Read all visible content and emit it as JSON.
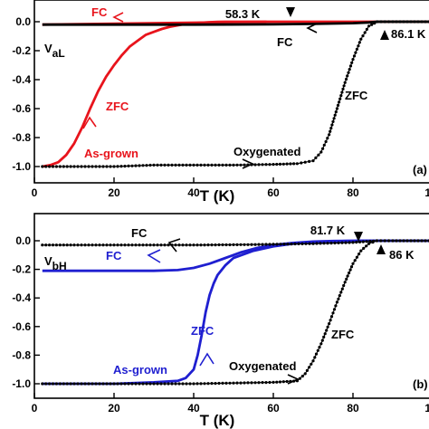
{
  "chart_data": [
    {
      "panel": "(a)",
      "type": "line",
      "xlabel": "T (K)",
      "ylabel": "",
      "xlim": [
        0,
        100
      ],
      "ylim": [
        -1.1,
        0.1
      ],
      "xticks": [
        "0",
        "20",
        "40",
        "60",
        "80",
        "1"
      ],
      "yticks": [
        "0.0",
        "-0.2",
        "-0.4",
        "-0.6",
        "-0.8",
        "-1.0"
      ],
      "grid": false,
      "series": [
        {
          "name": "As-grown",
          "color": "#e8141c",
          "style": "solid",
          "x": [
            2,
            4,
            6,
            8,
            10,
            12,
            14,
            16,
            18,
            20,
            22,
            24,
            26,
            28,
            30,
            32,
            34,
            36,
            38,
            40,
            42,
            44,
            46,
            48,
            50,
            52,
            54,
            56,
            58.3,
            60,
            70,
            80,
            90,
            100
          ],
          "y": [
            -1.0,
            -0.99,
            -0.97,
            -0.92,
            -0.84,
            -0.73,
            -0.6,
            -0.48,
            -0.38,
            -0.3,
            -0.23,
            -0.17,
            -0.13,
            -0.09,
            -0.07,
            -0.05,
            -0.035,
            -0.025,
            -0.015,
            -0.01,
            -0.006,
            -0.003,
            -0.001,
            0,
            0,
            0,
            0,
            0,
            0,
            0,
            0,
            0,
            0,
            0
          ]
        },
        {
          "name": "FC",
          "color": "#e8141c",
          "style": "solid",
          "x": [
            2,
            58.3
          ],
          "y": [
            -0.02,
            0.0
          ]
        },
        {
          "name": "Oxygenated",
          "color": "#000000",
          "style": "dotted",
          "x": [
            2,
            10,
            20,
            30,
            40,
            50,
            60,
            66,
            70,
            72,
            74,
            76,
            78,
            80,
            82,
            84,
            86.1,
            88,
            90,
            100
          ],
          "y": [
            -1.0,
            -1.0,
            -1.0,
            -0.99,
            -0.99,
            -0.99,
            -0.985,
            -0.98,
            -0.96,
            -0.9,
            -0.78,
            -0.6,
            -0.42,
            -0.26,
            -0.12,
            -0.03,
            0.0,
            0.0,
            0.0,
            0.0
          ]
        },
        {
          "name": "FC",
          "color": "#000000",
          "style": "solid",
          "x": [
            2,
            20,
            40,
            60,
            70,
            80,
            84,
            86.1,
            100
          ],
          "y": [
            -0.02,
            -0.02,
            -0.02,
            -0.018,
            -0.015,
            -0.01,
            -0.005,
            0.0,
            0.0
          ]
        }
      ],
      "annotations": [
        {
          "text": "FC",
          "color": "#e8141c"
        },
        {
          "text": "58.3 K",
          "color": "#000000"
        },
        {
          "text": "86.1 K",
          "color": "#000000"
        },
        {
          "text": "FC",
          "color": "#000000"
        },
        {
          "text": "ZFC",
          "color": "#e8141c"
        },
        {
          "text": "ZFC",
          "color": "#000000"
        },
        {
          "text": "As-grown",
          "color": "#e8141c"
        },
        {
          "text": "Oxygenated",
          "color": "#000000"
        },
        {
          "text": "(a)",
          "color": "#000000"
        }
      ],
      "label_main": "V",
      "label_sub": "aL"
    },
    {
      "panel": "(b)",
      "type": "line",
      "xlabel": "T (K)",
      "ylabel": "",
      "xlim": [
        0,
        100
      ],
      "ylim": [
        -1.1,
        0.1
      ],
      "xticks": [
        "0",
        "20",
        "40",
        "60",
        "80",
        "1"
      ],
      "yticks": [
        "0.0",
        "-0.2",
        "-0.4",
        "-0.6",
        "-0.8",
        "-1.0"
      ],
      "grid": false,
      "series": [
        {
          "name": "As-grown",
          "color": "#1f1fd0",
          "style": "solid",
          "x": [
            2,
            10,
            20,
            30,
            36,
            38,
            40,
            41,
            42,
            43,
            44,
            45,
            46,
            48,
            50,
            55,
            60,
            65,
            70,
            75,
            81.7,
            90,
            100
          ],
          "y": [
            -1.0,
            -1.0,
            -1.0,
            -0.99,
            -0.98,
            -0.96,
            -0.9,
            -0.8,
            -0.66,
            -0.5,
            -0.38,
            -0.3,
            -0.24,
            -0.17,
            -0.12,
            -0.07,
            -0.04,
            -0.02,
            -0.01,
            -0.004,
            0.0,
            0.0,
            0.0
          ]
        },
        {
          "name": "FC",
          "color": "#1f1fd0",
          "style": "solid",
          "x": [
            2,
            10,
            20,
            30,
            36,
            40,
            44,
            48,
            52,
            56,
            60,
            65,
            70,
            75,
            81.7,
            100
          ],
          "y": [
            -0.21,
            -0.21,
            -0.21,
            -0.21,
            -0.205,
            -0.19,
            -0.16,
            -0.12,
            -0.08,
            -0.05,
            -0.03,
            -0.015,
            -0.006,
            -0.002,
            0.0,
            0.0
          ]
        },
        {
          "name": "Oxygenated",
          "color": "#000000",
          "style": "dotted",
          "x": [
            2,
            10,
            20,
            30,
            40,
            50,
            60,
            66,
            68,
            70,
            72,
            74,
            76,
            78,
            80,
            82,
            84,
            86,
            90,
            100
          ],
          "y": [
            -1.0,
            -1.0,
            -1.0,
            -1.0,
            -1.0,
            -0.995,
            -0.99,
            -0.98,
            -0.93,
            -0.84,
            -0.72,
            -0.58,
            -0.43,
            -0.29,
            -0.16,
            -0.07,
            -0.02,
            0.0,
            0.0,
            0.0
          ]
        },
        {
          "name": "FC",
          "color": "#000000",
          "style": "dotted",
          "x": [
            2,
            10,
            20,
            30,
            40,
            50,
            60,
            70,
            80,
            86,
            90,
            100
          ],
          "y": [
            -0.03,
            -0.03,
            -0.03,
            -0.03,
            -0.03,
            -0.028,
            -0.025,
            -0.02,
            -0.012,
            0.0,
            0.0,
            0.0
          ]
        }
      ],
      "annotations": [
        {
          "text": "FC",
          "color": "#000000"
        },
        {
          "text": "81.7 K",
          "color": "#000000"
        },
        {
          "text": "86 K",
          "color": "#000000"
        },
        {
          "text": "FC",
          "color": "#1f1fd0"
        },
        {
          "text": "ZFC",
          "color": "#1f1fd0"
        },
        {
          "text": "ZFC",
          "color": "#000000"
        },
        {
          "text": "As-grown",
          "color": "#1f1fd0"
        },
        {
          "text": "Oxygenated",
          "color": "#000000"
        },
        {
          "text": "(b)",
          "color": "#000000"
        }
      ],
      "label_main": "V",
      "label_sub": "bH"
    }
  ]
}
